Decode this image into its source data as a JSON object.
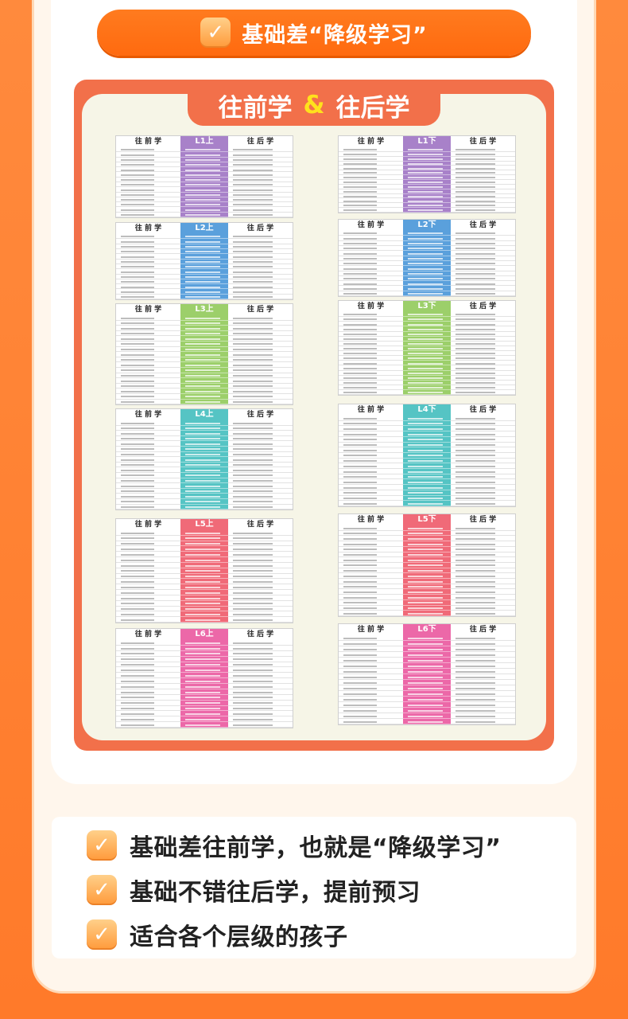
{
  "banner": {
    "text": "基础差“降级学习”",
    "icon": "check-icon"
  },
  "board": {
    "title_left": "往前学",
    "amp": "&",
    "title_right": "往后学",
    "col_left_label": "往 前 学",
    "col_right_label": "往 后 学",
    "levels": [
      {
        "label": "L1上",
        "color": "#a881c9"
      },
      {
        "label": "L1下",
        "color": "#a881c9"
      },
      {
        "label": "L2上",
        "color": "#5aa0dc"
      },
      {
        "label": "L2下",
        "color": "#5aa0dc"
      },
      {
        "label": "L3上",
        "color": "#9ccf6a"
      },
      {
        "label": "L3下",
        "color": "#9ccf6a"
      },
      {
        "label": "L4上",
        "color": "#55c4c4"
      },
      {
        "label": "L4下",
        "color": "#55c4c4"
      },
      {
        "label": "L5上",
        "color": "#f06a78"
      },
      {
        "label": "L5下",
        "color": "#f06a78"
      },
      {
        "label": "L6上",
        "color": "#ec68a8"
      },
      {
        "label": "L6下",
        "color": "#ec68a8"
      }
    ]
  },
  "benefits": [
    "基础差往前学，也就是“降级学习”",
    "基础不错往后学，提前预习",
    "适合各个层级的孩子"
  ]
}
